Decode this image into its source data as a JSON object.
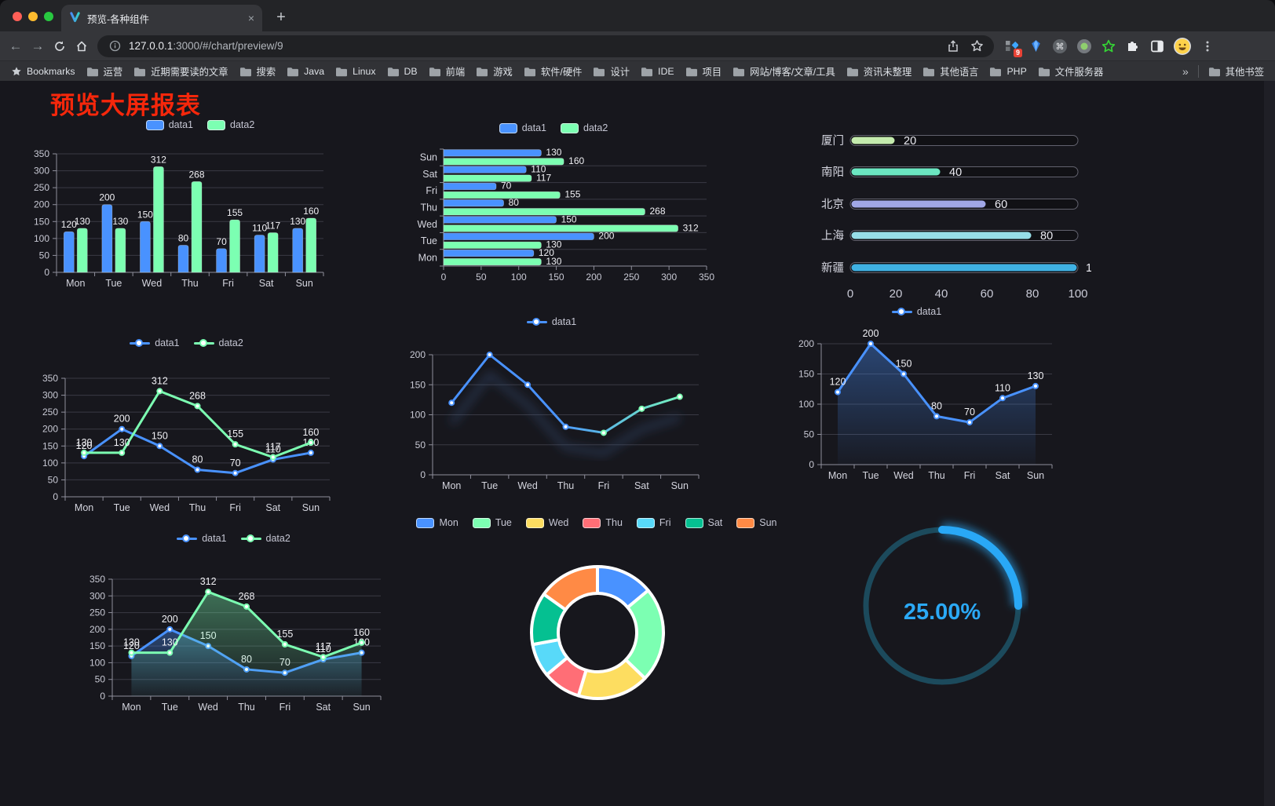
{
  "browser": {
    "traffic_lights": [
      "#ff5f57",
      "#febc2e",
      "#28c840"
    ],
    "tab": {
      "title": "预览-各种组件",
      "close": "×"
    },
    "new_tab": "+",
    "url": {
      "host": "127.0.0.1",
      "path": ":3000/#/chart/preview/9"
    },
    "extension_badge": "9",
    "bookmarks_bar": {
      "star_label": "Bookmarks",
      "folders": [
        "运营",
        "近期需要读的文章",
        "搜索",
        "Java",
        "Linux",
        "DB",
        "前端",
        "游戏",
        "软件/硬件",
        "设计",
        "IDE",
        "项目",
        "网站/博客/文章/工具",
        "资讯未整理",
        "其他语言",
        "PHP",
        "文件服务器"
      ],
      "overflow": "»",
      "other": "其他书签"
    }
  },
  "page": {
    "title": "预览大屏报表",
    "title_color": "#f5270b"
  },
  "chart_data": [
    {
      "id": "bar-vertical",
      "type": "bar",
      "categories": [
        "Mon",
        "Tue",
        "Wed",
        "Thu",
        "Fri",
        "Sat",
        "Sun"
      ],
      "series": [
        {
          "name": "data1",
          "color": "#4992ff",
          "values": [
            120,
            200,
            150,
            80,
            70,
            110,
            130
          ]
        },
        {
          "name": "data2",
          "color": "#7cffb2",
          "values": [
            130,
            130,
            312,
            268,
            155,
            117,
            160
          ]
        }
      ],
      "ylim": [
        0,
        350
      ],
      "ytick": 50,
      "grid": true,
      "legend_position": "top",
      "data_labels": true
    },
    {
      "id": "bar-horizontal",
      "type": "bar-horizontal",
      "categories": [
        "Mon",
        "Tue",
        "Wed",
        "Thu",
        "Fri",
        "Sat",
        "Sun"
      ],
      "category_order_top_to_bottom": [
        "Sun",
        "Sat",
        "Fri",
        "Thu",
        "Wed",
        "Tue",
        "Mon"
      ],
      "series": [
        {
          "name": "data1",
          "color": "#4992ff",
          "values": [
            120,
            200,
            150,
            80,
            70,
            110,
            130
          ]
        },
        {
          "name": "data2",
          "color": "#7cffb2",
          "values": [
            130,
            130,
            312,
            268,
            155,
            117,
            160
          ]
        }
      ],
      "xlim": [
        0,
        350
      ],
      "xtick": 50,
      "legend_position": "top",
      "data_labels": true
    },
    {
      "id": "progress-list",
      "type": "progress",
      "max": 100,
      "axis_ticks": [
        0,
        20,
        40,
        60,
        80,
        100
      ],
      "items": [
        {
          "label": "厦门",
          "value": 20,
          "color": "#c4ebad"
        },
        {
          "label": "南阳",
          "value": 40,
          "color": "#6be6c1"
        },
        {
          "label": "北京",
          "value": 60,
          "color": "#a0a7e6"
        },
        {
          "label": "上海",
          "value": 80,
          "color": "#96dee8"
        },
        {
          "label": "新疆",
          "value": 100,
          "color": "#3fb1e3"
        }
      ]
    },
    {
      "id": "line-two-series",
      "type": "line",
      "categories": [
        "Mon",
        "Tue",
        "Wed",
        "Thu",
        "Fri",
        "Sat",
        "Sun"
      ],
      "series": [
        {
          "name": "data1",
          "color": "#4992ff",
          "values": [
            120,
            200,
            150,
            80,
            70,
            110,
            130
          ],
          "labels": true
        },
        {
          "name": "data2",
          "color": "#7cffb2",
          "values": [
            130,
            130,
            312,
            268,
            155,
            117,
            160
          ],
          "labels": true
        }
      ],
      "ylim": [
        0,
        350
      ],
      "ytick": 50,
      "legend_position": "top"
    },
    {
      "id": "line-gradient",
      "type": "line",
      "categories": [
        "Mon",
        "Tue",
        "Wed",
        "Thu",
        "Fri",
        "Sat",
        "Sun"
      ],
      "series": [
        {
          "name": "data1",
          "color": "#4992ff",
          "gradient_to": "#7cffb2",
          "values": [
            120,
            200,
            150,
            80,
            70,
            110,
            130
          ],
          "labels": false,
          "shadow": true
        }
      ],
      "ylim": [
        0,
        200
      ],
      "ytick": 50,
      "legend_position": "top"
    },
    {
      "id": "line-area",
      "type": "line",
      "categories": [
        "Mon",
        "Tue",
        "Wed",
        "Thu",
        "Fri",
        "Sat",
        "Sun"
      ],
      "series": [
        {
          "name": "data1",
          "color": "#4992ff",
          "values": [
            120,
            200,
            150,
            80,
            70,
            110,
            130
          ],
          "labels": true,
          "area": true
        }
      ],
      "ylim": [
        0,
        200
      ],
      "ytick": 50,
      "legend_position": "top"
    },
    {
      "id": "line-two-area",
      "type": "line",
      "categories": [
        "Mon",
        "Tue",
        "Wed",
        "Thu",
        "Fri",
        "Sat",
        "Sun"
      ],
      "series": [
        {
          "name": "data1",
          "color": "#4992ff",
          "values": [
            120,
            200,
            150,
            80,
            70,
            110,
            130
          ],
          "labels": true,
          "area": true
        },
        {
          "name": "data2",
          "color": "#7cffb2",
          "values": [
            130,
            130,
            312,
            268,
            155,
            117,
            160
          ],
          "labels": true,
          "area": true
        }
      ],
      "ylim": [
        0,
        350
      ],
      "ytick": 50,
      "legend_position": "top"
    },
    {
      "id": "donut",
      "type": "pie",
      "labels": [
        "Mon",
        "Tue",
        "Wed",
        "Thu",
        "Fri",
        "Sat",
        "Sun"
      ],
      "values": [
        120,
        200,
        150,
        80,
        70,
        110,
        130
      ],
      "colors": [
        "#4992ff",
        "#7cffb2",
        "#fddd60",
        "#ff6e76",
        "#58d9f9",
        "#05c091",
        "#ff8a45"
      ],
      "inner_radius_ratio": 0.6,
      "legend_position": "top"
    },
    {
      "id": "gauge",
      "type": "gauge",
      "value": 25,
      "label": "25.00%",
      "color": "#29a8f6",
      "track_color": "#1c4a5c",
      "text_color": "#2ba9f6"
    }
  ]
}
